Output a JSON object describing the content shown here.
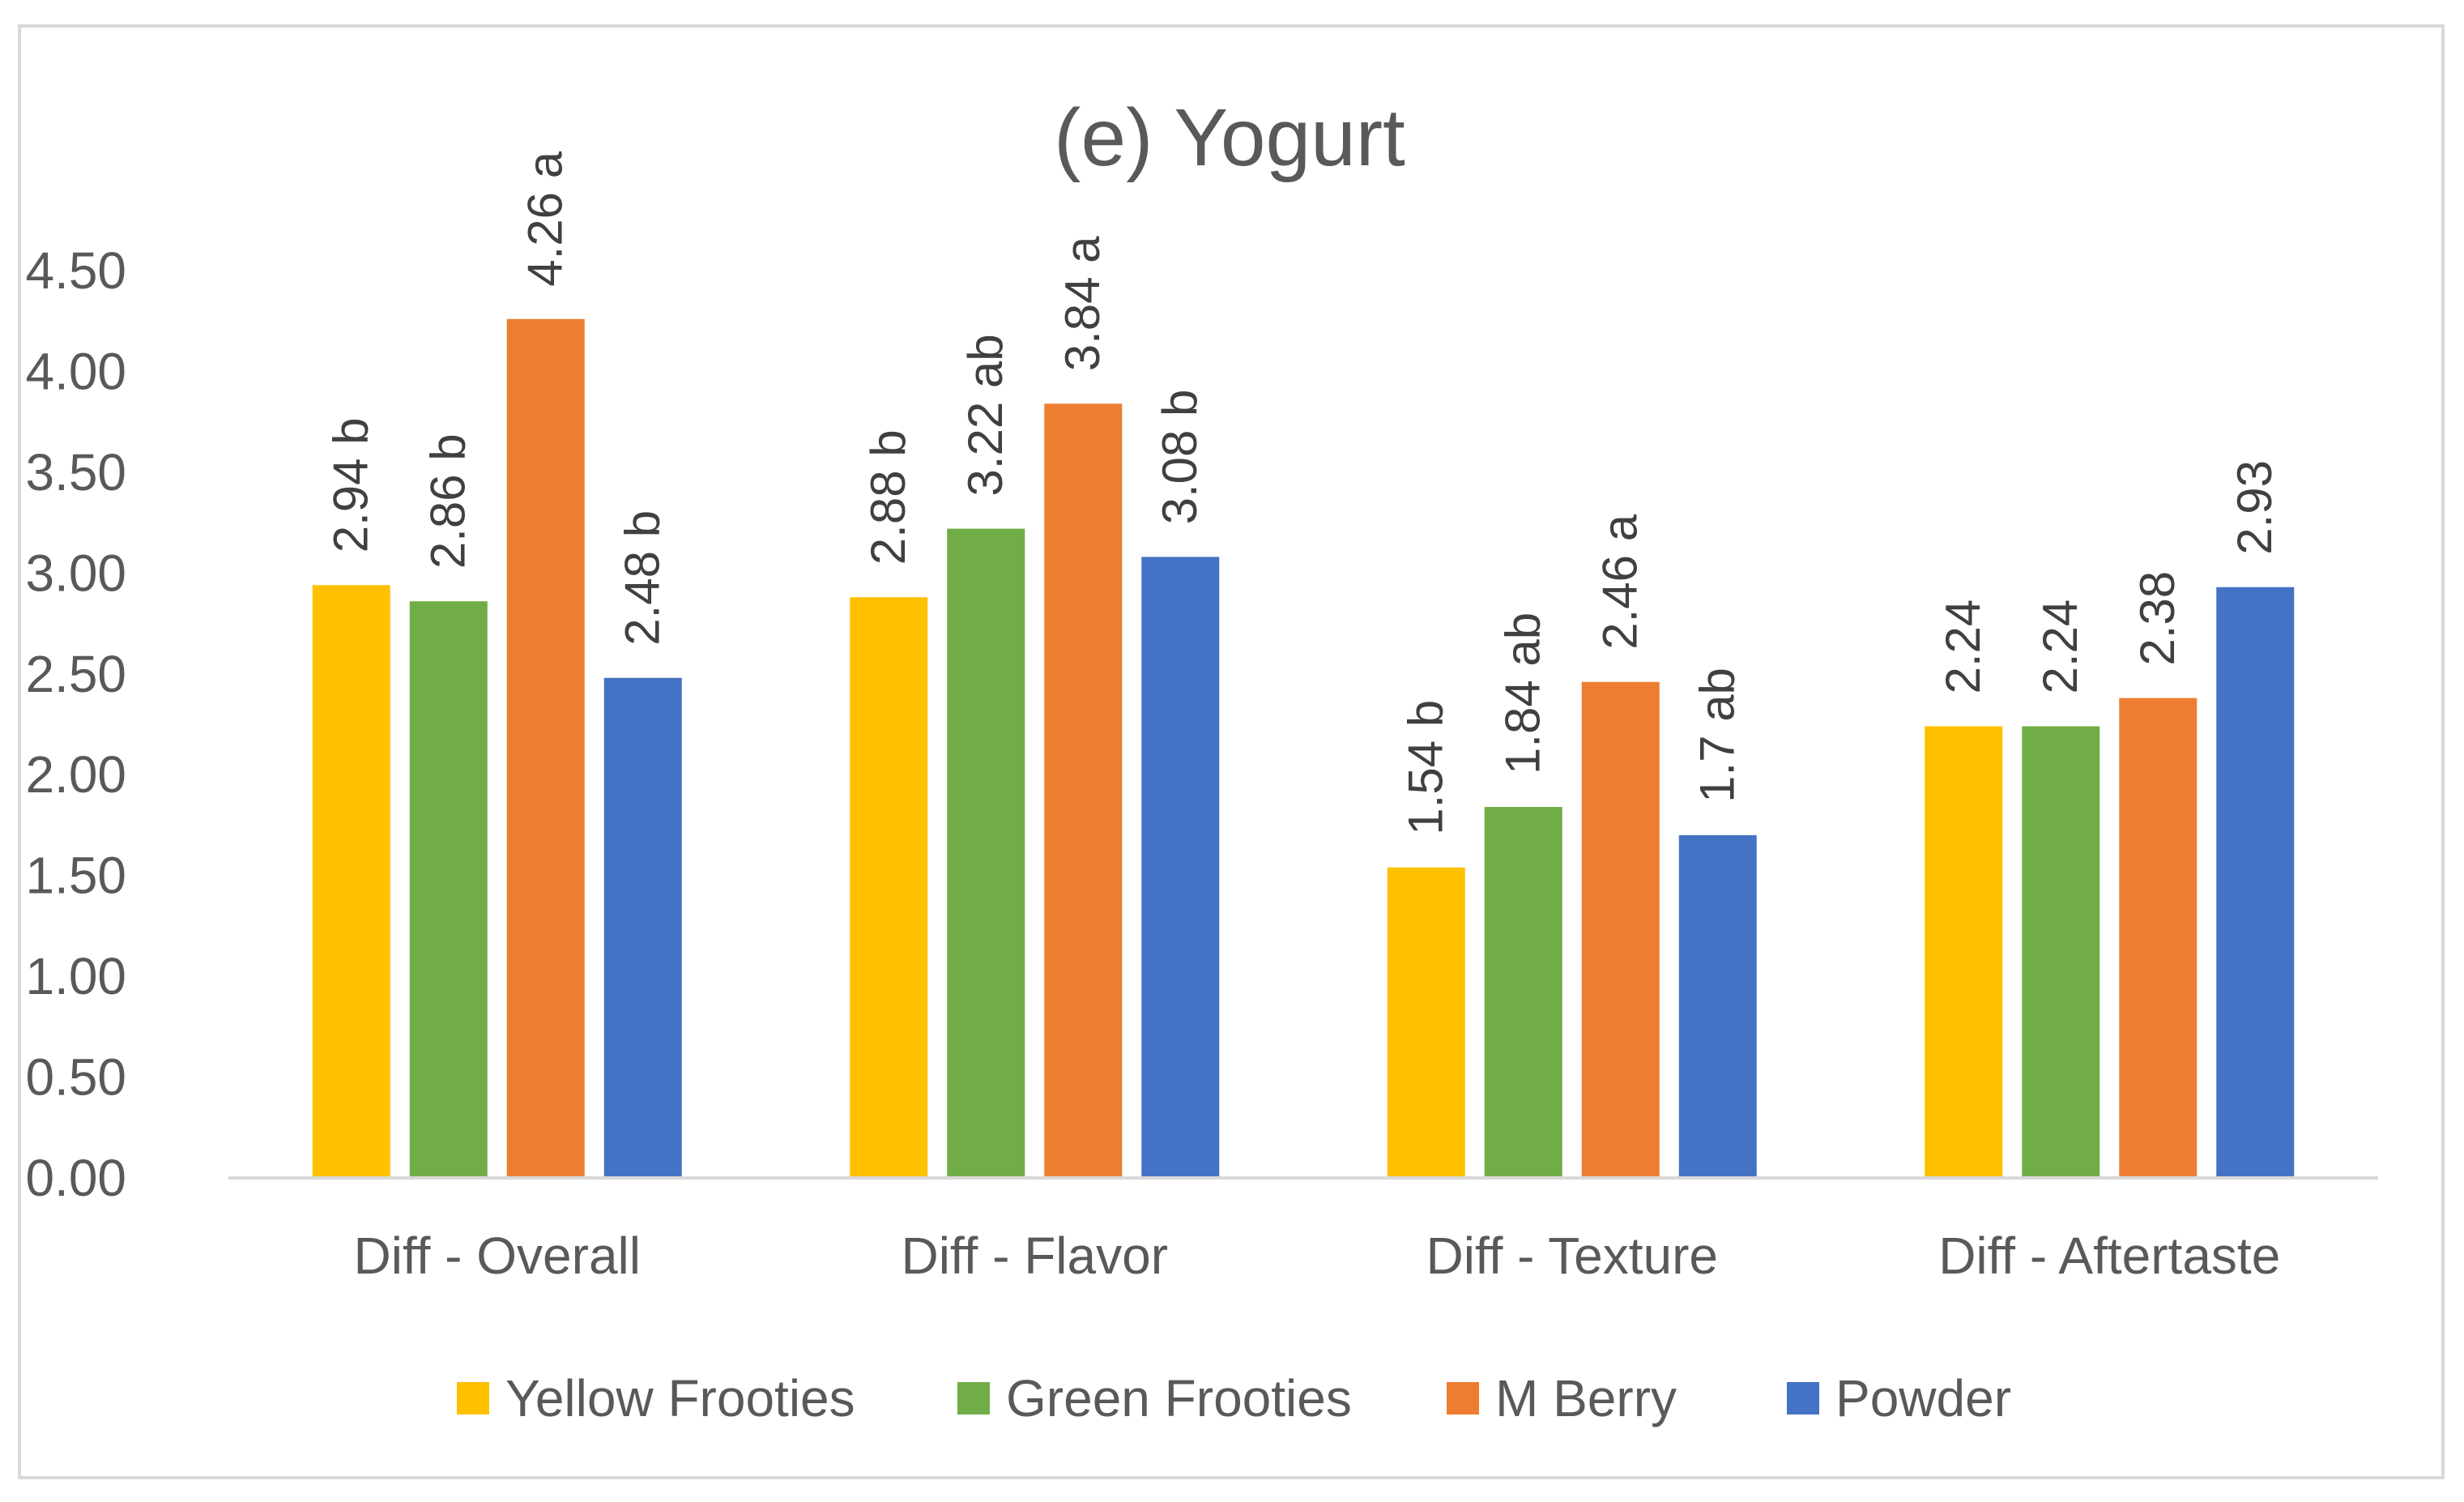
{
  "chart_data": {
    "type": "bar",
    "title": "(e) Yogurt",
    "xlabel": "",
    "ylabel": "",
    "ylim": [
      0,
      4.5
    ],
    "yticks": [
      "0.00",
      "0.50",
      "1.00",
      "1.50",
      "2.00",
      "2.50",
      "3.00",
      "3.50",
      "4.00",
      "4.50"
    ],
    "grid": false,
    "legend_position": "bottom",
    "categories": [
      "Diff - Overall",
      "Diff - Flavor",
      "Diff - Texture",
      "Diff - Aftertaste"
    ],
    "series": [
      {
        "name": "Yellow Frooties",
        "color": "#FFC000",
        "values": [
          2.94,
          2.88,
          1.54,
          2.24
        ],
        "labels": [
          "2.94 b",
          "2.88 b",
          "1.54 b",
          "2.24"
        ]
      },
      {
        "name": "Green Frooties",
        "color": "#70AD47",
        "values": [
          2.86,
          3.22,
          1.84,
          2.24
        ],
        "labels": [
          "2.86 b",
          "3.22 ab",
          "1.84 ab",
          "2.24"
        ]
      },
      {
        "name": "M Berry",
        "color": "#ED7D31",
        "values": [
          4.26,
          3.84,
          2.46,
          2.38
        ],
        "labels": [
          "4.26 a",
          "3.84 a",
          "2.46 a",
          "2.38"
        ]
      },
      {
        "name": "Powder",
        "color": "#4472C4",
        "values": [
          2.48,
          3.08,
          1.7,
          2.93
        ],
        "labels": [
          "2.48 b",
          "3.08 b",
          "1.7 ab",
          "2.93"
        ]
      }
    ]
  }
}
